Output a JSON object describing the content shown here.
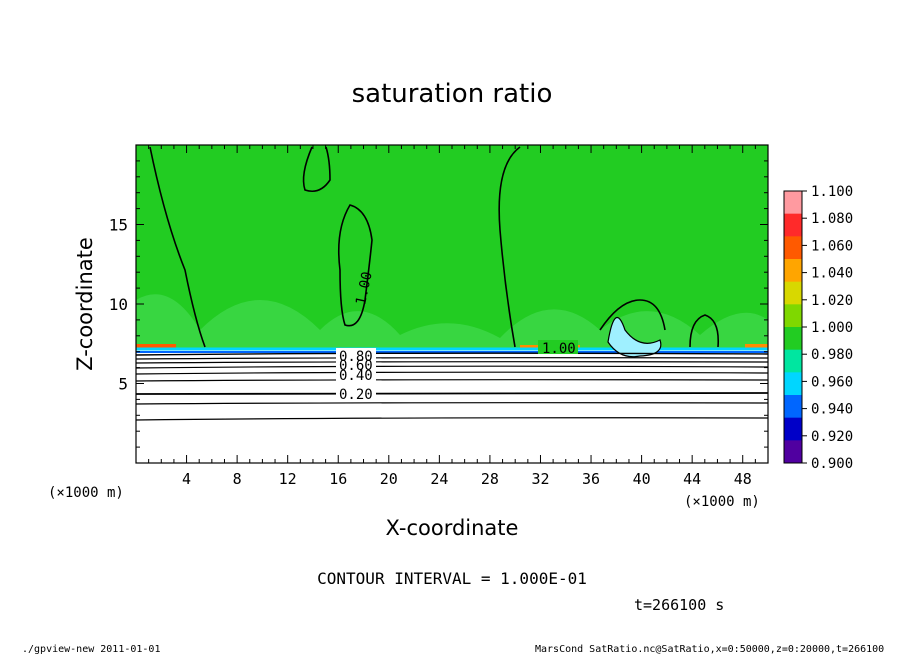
{
  "chart_data": {
    "type": "heatmap",
    "title": "saturation ratio",
    "xlabel": "X-coordinate",
    "ylabel": "Z-coordinate",
    "x_unit_label": "(×1000 m)",
    "x_unit_label_right": "(×1000 m)",
    "xlim": [
      0,
      50
    ],
    "ylim": [
      0,
      20
    ],
    "x_ticks": [
      "4",
      "8",
      "12",
      "16",
      "20",
      "24",
      "28",
      "32",
      "36",
      "40",
      "44",
      "48"
    ],
    "y_ticks": [
      "5",
      "10",
      "15"
    ],
    "colorbar": {
      "levels": [
        "1.100",
        "1.080",
        "1.060",
        "1.040",
        "1.020",
        "1.000",
        "0.980",
        "0.960",
        "0.940",
        "0.920",
        "0.900"
      ],
      "colors": [
        "#ff9aa0",
        "#ff2a2a",
        "#ff5a00",
        "#ffa500",
        "#d8d800",
        "#7fd800",
        "#22cc22",
        "#00e6a0",
        "#00d6ff",
        "#0066ff",
        "#0000c8",
        "#5000a0"
      ]
    },
    "contour_labels": [
      "1.00",
      "1.00",
      "0.80",
      "0.60",
      "0.40",
      "0.20"
    ],
    "contour_interval_text": "CONTOUR INTERVAL = 1.000E-01",
    "time_text": "t=266100 s",
    "field_description": "Green saturated region (~1.00) above z≈7, subsaturated layers with ratio decreasing 0.8 → 0.2 below, white below z≈4"
  },
  "footer": {
    "left": "./gpview-new  2011-01-01",
    "right": "MarsCond_SatRatio.nc@SatRatio,x=0:50000,z=0:20000,t=266100"
  },
  "colors": {
    "background": "#ffffff",
    "main_green": "#22cc22"
  }
}
